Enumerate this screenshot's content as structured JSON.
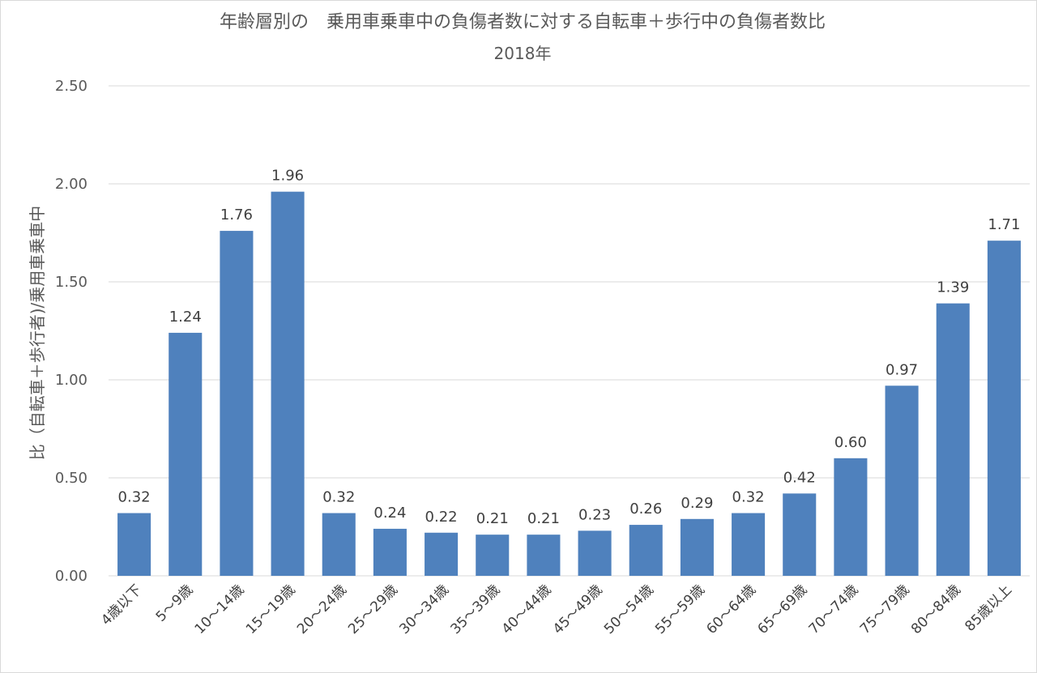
{
  "chart_data": {
    "type": "bar",
    "title": "年齢層別の　乗用車乗車中の負傷者数に対する自転車＋歩行中の負傷者数比",
    "subtitle": "2018年",
    "ylabel": "比（自転車＋歩行者)/乗用車乗車中",
    "xlabel": "",
    "ylim": [
      0,
      2.5
    ],
    "yticks": [
      "0.00",
      "0.50",
      "1.00",
      "1.50",
      "2.00",
      "2.50"
    ],
    "grid": true,
    "legend": "none",
    "bar_color": "#4f81bd",
    "categories": [
      "4歳以下",
      "5～9歳",
      "10～14歳",
      "15～19歳",
      "20～24歳",
      "25～29歳",
      "30～34歳",
      "35～39歳",
      "40～44歳",
      "45～49歳",
      "50～54歳",
      "55～59歳",
      "60～64歳",
      "65～69歳",
      "70～74歳",
      "75～79歳",
      "80～84歳",
      "85歳以上"
    ],
    "values": [
      0.32,
      1.24,
      1.76,
      1.96,
      0.32,
      0.24,
      0.22,
      0.21,
      0.21,
      0.23,
      0.26,
      0.29,
      0.32,
      0.42,
      0.6,
      0.97,
      1.39,
      1.71
    ],
    "data_labels": [
      "0.32",
      "1.24",
      "1.76",
      "1.96",
      "0.32",
      "0.24",
      "0.22",
      "0.21",
      "0.21",
      "0.23",
      "0.26",
      "0.29",
      "0.32",
      "0.42",
      "0.60",
      "0.97",
      "1.39",
      "1.71"
    ]
  }
}
